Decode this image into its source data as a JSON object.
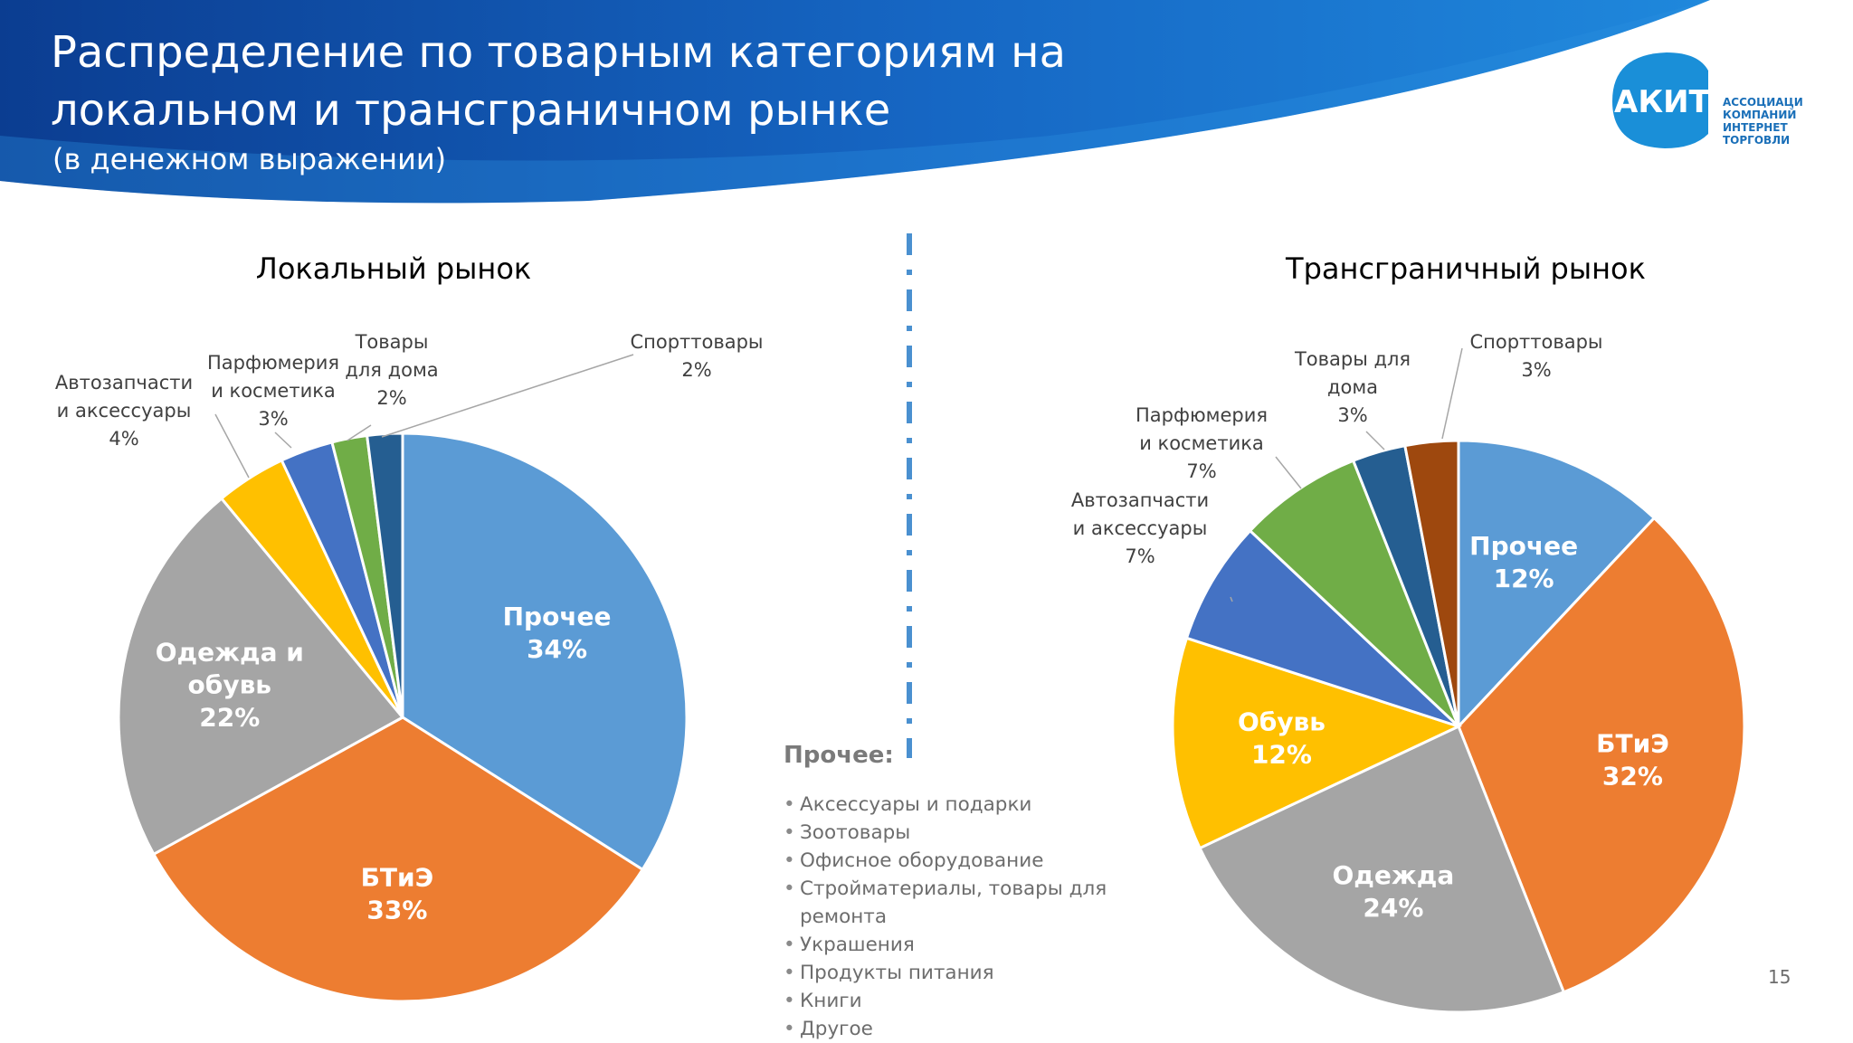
{
  "slide": {
    "title_line1": "Распределение по товарным категориям на",
    "title_line2": "локальном и трансграничном рынке",
    "subtitle": "(в денежном выражении)",
    "page_number": "15"
  },
  "logo": {
    "abbr": "АКИТ",
    "line1": "АССОЦИАЦИЯ",
    "line2": "КОМПАНИЙ",
    "line3": "ИНТЕРНЕТ",
    "line4": "ТОРГОВЛИ"
  },
  "colors": {
    "banner_dark": "#0b3d91",
    "banner_light": "#1f7fd6",
    "logo_blue": "#1a8fd8",
    "divider": "#4a90d0"
  },
  "chart_data": [
    {
      "type": "pie",
      "title": "Локальный рынок",
      "series": [
        {
          "name": [
            "Прочее"
          ],
          "value": 34,
          "label": "34%",
          "color": "#5b9bd5",
          "inside": true
        },
        {
          "name": [
            "БТиЭ"
          ],
          "value": 33,
          "label": "33%",
          "color": "#ed7d31",
          "inside": true
        },
        {
          "name": [
            "Одежда и",
            "обувь"
          ],
          "value": 22,
          "label": "22%",
          "color": "#a5a5a5",
          "inside": true
        },
        {
          "name": [
            "Автозапчасти",
            "и аксессуары"
          ],
          "value": 4,
          "label": "4%",
          "color": "#ffc000",
          "inside": false
        },
        {
          "name": [
            "Парфюмерия",
            "и косметика"
          ],
          "value": 3,
          "label": "3%",
          "color": "#4472c4",
          "inside": false
        },
        {
          "name": [
            "Товары",
            "для дома"
          ],
          "value": 2,
          "label": "2%",
          "color": "#70ad47",
          "inside": false
        },
        {
          "name": [
            "Спорттовары"
          ],
          "value": 2,
          "label": "2%",
          "color": "#255e91",
          "inside": false
        }
      ]
    },
    {
      "type": "pie",
      "title": "Трансграничный рынок",
      "series": [
        {
          "name": [
            "Прочее"
          ],
          "value": 12,
          "label": "12%",
          "color": "#5b9bd5",
          "inside": true
        },
        {
          "name": [
            "БТиЭ"
          ],
          "value": 32,
          "label": "32%",
          "color": "#ed7d31",
          "inside": true
        },
        {
          "name": [
            "Одежда"
          ],
          "value": 24,
          "label": "24%",
          "color": "#a5a5a5",
          "inside": true
        },
        {
          "name": [
            "Обувь"
          ],
          "value": 12,
          "label": "12%",
          "color": "#ffc000",
          "inside": true
        },
        {
          "name": [
            "Автозапчасти",
            "и аксессуары"
          ],
          "value": 7,
          "label": "7%",
          "color": "#4472c4",
          "inside": false
        },
        {
          "name": [
            "Парфюмерия",
            "и косметика"
          ],
          "value": 7,
          "label": "7%",
          "color": "#70ad47",
          "inside": false
        },
        {
          "name": [
            "Товары для",
            "дома"
          ],
          "value": 3,
          "label": "3%",
          "color": "#255e91",
          "inside": false
        },
        {
          "name": [
            "Спорттовары"
          ],
          "value": 3,
          "label": "3%",
          "color": "#9e480e",
          "inside": false
        }
      ]
    }
  ],
  "others_list": {
    "title": "Прочее:",
    "items": [
      "Аксессуары и подарки",
      "Зоотовары",
      "Офисное оборудование",
      "Стройматериалы, товары для ремонта",
      "Украшения",
      "Продукты питания",
      "Книги",
      "Другое"
    ]
  }
}
